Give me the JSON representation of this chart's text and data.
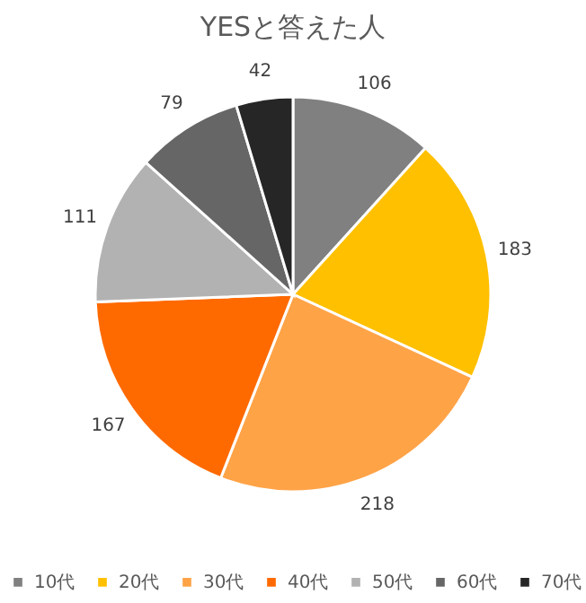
{
  "chart_data": {
    "type": "pie",
    "title": "YESと答えた人",
    "categories": [
      "10代",
      "20代",
      "30代",
      "40代",
      "50代",
      "60代",
      "70代"
    ],
    "values": [
      106,
      183,
      218,
      167,
      111,
      79,
      42
    ],
    "colors": [
      "#808080",
      "#ffc000",
      "#ffa347",
      "#ff6a00",
      "#b2b2b2",
      "#666666",
      "#262626"
    ],
    "data_labels": true,
    "legend": "bottom"
  }
}
